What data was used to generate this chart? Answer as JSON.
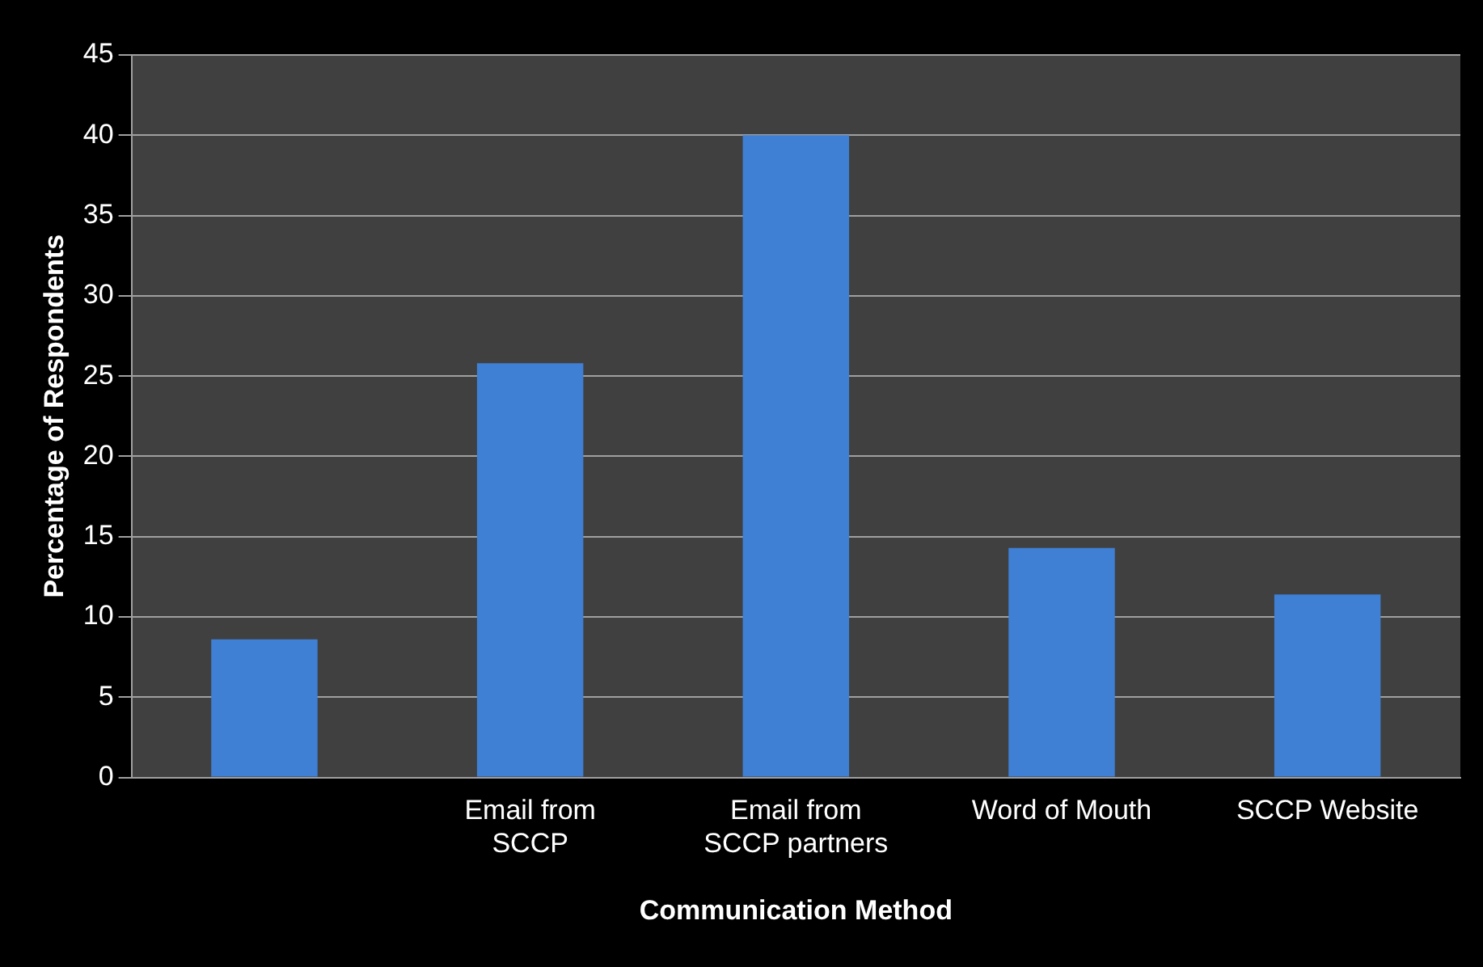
{
  "chart_data": {
    "type": "bar",
    "xlabel": "Communication Method",
    "ylabel": "Percentage of Respondents",
    "categories": [
      null,
      "Email from SCCP",
      "Email from SCCP partners",
      "Word of Mouth",
      "SCCP Website"
    ],
    "values": [
      8.6,
      25.8,
      40,
      14.3,
      11.4
    ],
    "color": "#3f7fd4",
    "ylim": [
      0,
      45
    ],
    "yticks": [
      0,
      5,
      10,
      15,
      20,
      25,
      30,
      35,
      40,
      45
    ],
    "grid": "y"
  }
}
